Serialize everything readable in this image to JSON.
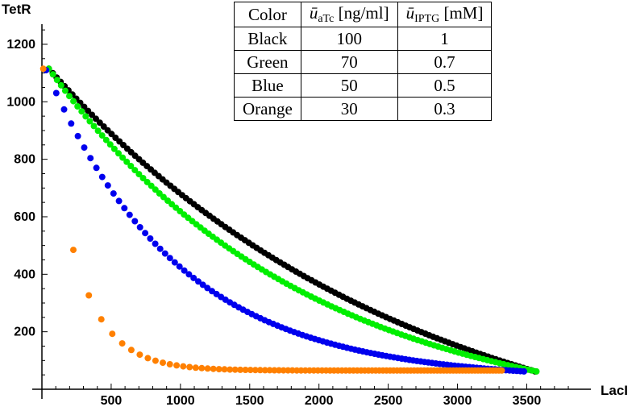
{
  "chart_data": {
    "type": "scatter",
    "xlabel": "LacI",
    "ylabel": "TetR",
    "xlim": [
      -60,
      3850
    ],
    "ylim": [
      0,
      1280
    ],
    "xticks": [
      500,
      1000,
      1500,
      2000,
      2500,
      3000,
      3500
    ],
    "yticks": [
      200,
      400,
      600,
      800,
      1000,
      1200
    ],
    "table": {
      "headers": [
        "Color",
        "ū_aTc [ng/ml]",
        "ū_IPTG [mM]"
      ],
      "header_parts": [
        {
          "text": "Color"
        },
        {
          "sym": "ū",
          "sub": "aTc",
          "unit": "[ng/ml]"
        },
        {
          "sym": "ū",
          "sub": "IPTG",
          "unit": "[mM]"
        }
      ],
      "rows": [
        [
          "Black",
          "100",
          "1"
        ],
        [
          "Green",
          "70",
          "0.7"
        ],
        [
          "Blue",
          "50",
          "0.5"
        ],
        [
          "Orange",
          "30",
          "0.3"
        ]
      ]
    },
    "series": [
      {
        "color": "#000000",
        "start": [
          50,
          1115
        ],
        "end": [
          3560,
          62
        ],
        "n": 125,
        "curve": 1.35,
        "tparam": 1.0
      },
      {
        "color": "#00ee00",
        "start": [
          50,
          1115
        ],
        "end": [
          3570,
          62
        ],
        "n": 120,
        "curve": 1.9,
        "tparam": 1.0
      },
      {
        "color": "#0000ee",
        "start": [
          30,
          1110
        ],
        "end": [
          3480,
          62
        ],
        "n": 110,
        "curve": 3.6,
        "tparam": 0.82
      },
      {
        "color": "#ff8000",
        "start": [
          10,
          1115
        ],
        "end": [
          3320,
          65
        ],
        "n": 95,
        "curve": 14.0,
        "tparam": 0.6
      }
    ]
  }
}
